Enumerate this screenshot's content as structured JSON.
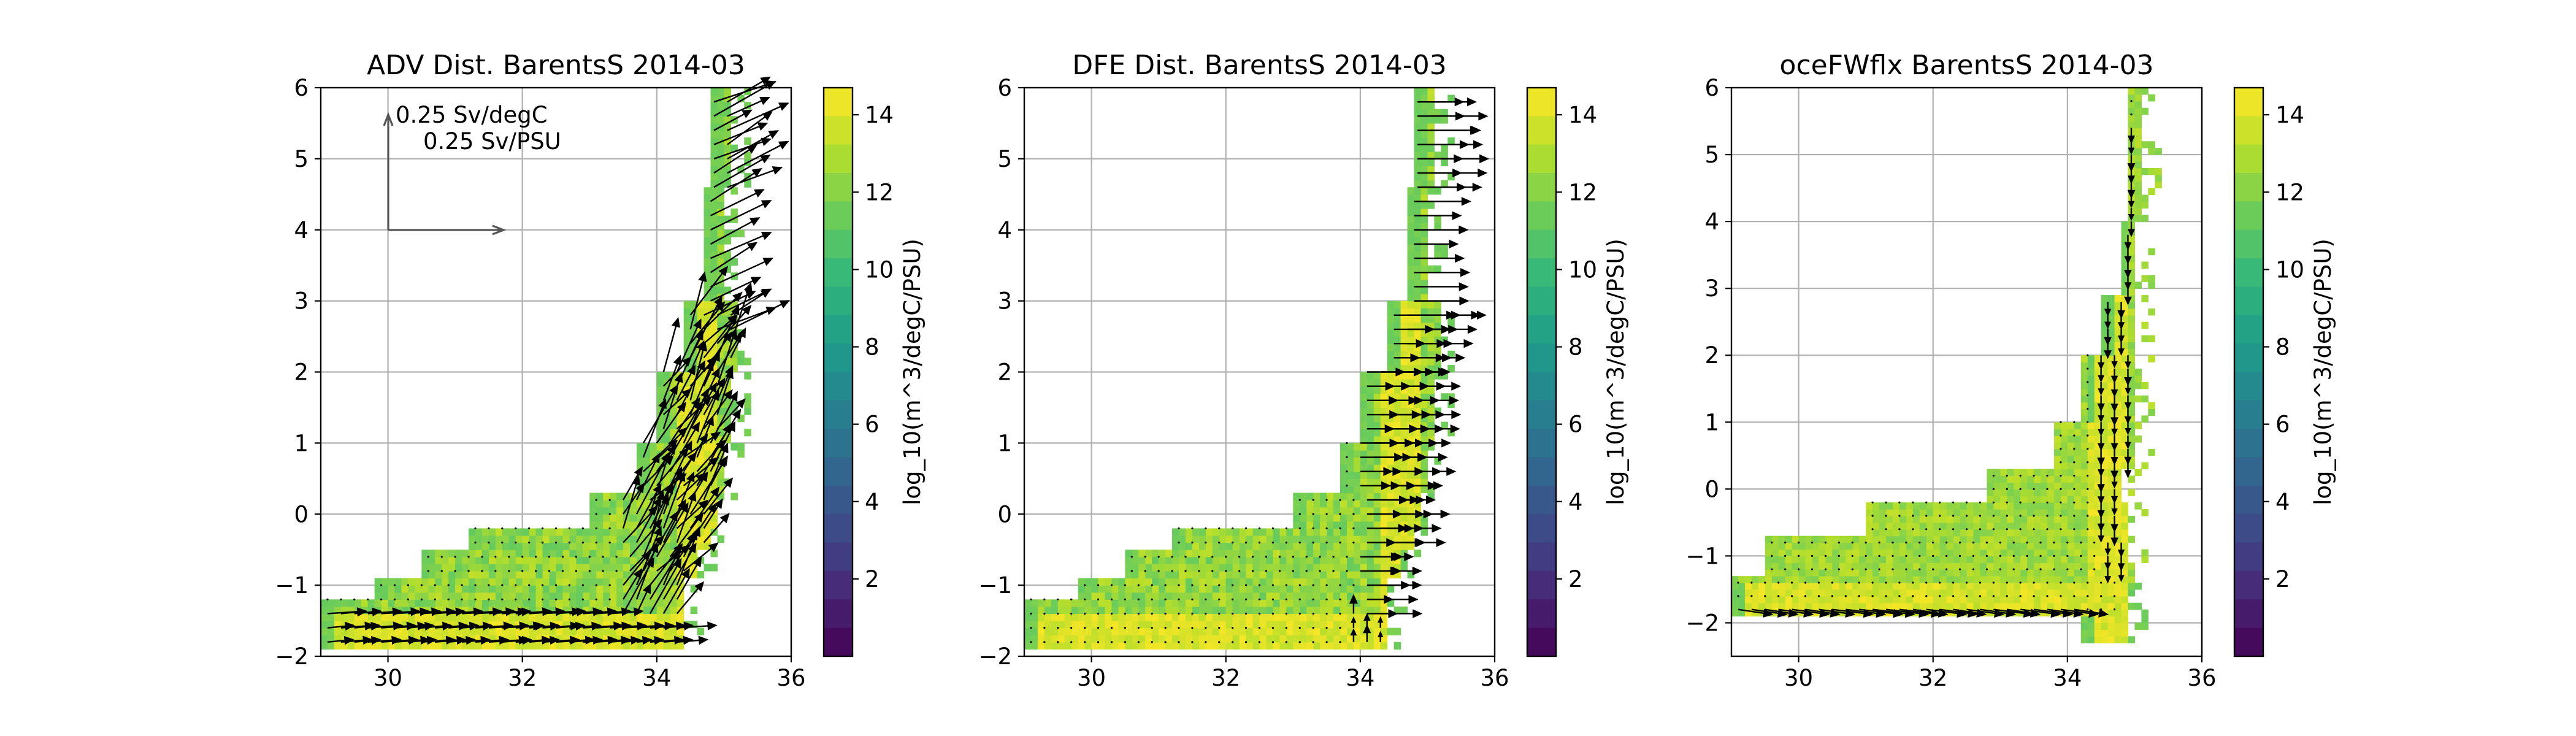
{
  "chart_data": [
    {
      "type": "heatmap",
      "title": "ADV Dist. BarentsS 2014-03",
      "xlabel": "",
      "ylabel": "",
      "xlim": [
        29,
        36
      ],
      "ylim": [
        -2,
        6
      ],
      "xticks": [
        30,
        32,
        34,
        36
      ],
      "yticks": [
        -2,
        -1,
        0,
        1,
        2,
        3,
        4,
        5,
        6
      ],
      "grid": true,
      "colorbar": {
        "label": "log_10(m^3/degC/PSU)",
        "ticks": [
          2,
          4,
          6,
          8,
          10,
          12,
          14
        ],
        "range": [
          0,
          14.7
        ]
      },
      "quiver": true,
      "quiver_key": [
        "0.25 Sv/degC",
        "0.25 Sv/PSU"
      ]
    },
    {
      "type": "heatmap",
      "title": "DFE Dist. BarentsS 2014-03",
      "xlabel": "",
      "ylabel": "",
      "xlim": [
        29,
        36
      ],
      "ylim": [
        -2,
        6
      ],
      "xticks": [
        30,
        32,
        34,
        36
      ],
      "yticks": [
        -2,
        -1,
        0,
        1,
        2,
        3,
        4,
        5,
        6
      ],
      "grid": true,
      "colorbar": {
        "label": "log_10(m^3/degC/PSU)",
        "ticks": [
          2,
          4,
          6,
          8,
          10,
          12,
          14
        ],
        "range": [
          0,
          14.7
        ]
      },
      "quiver": true
    },
    {
      "type": "heatmap",
      "title": "oceFWflx BarentsS 2014-03",
      "xlabel": "",
      "ylabel": "",
      "xlim": [
        29,
        36
      ],
      "ylim": [
        -2.5,
        6
      ],
      "xticks": [
        30,
        32,
        34,
        36
      ],
      "yticks": [
        -2,
        -1,
        0,
        1,
        2,
        3,
        4,
        5,
        6
      ],
      "grid": true,
      "colorbar": {
        "label": "log_10(m^3/degC/PSU)",
        "ticks": [
          2,
          4,
          6,
          8,
          10,
          12,
          14
        ],
        "range": [
          0,
          14.7
        ]
      },
      "quiver": true
    }
  ]
}
